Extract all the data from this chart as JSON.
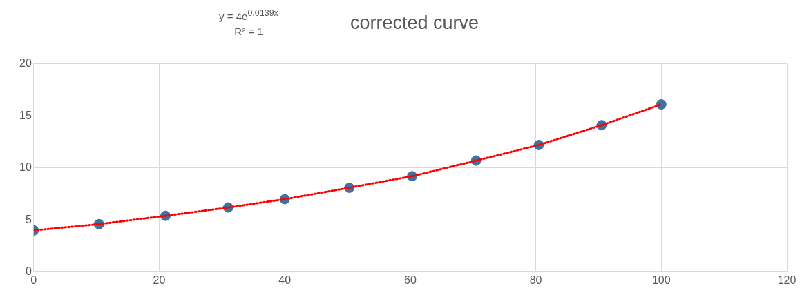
{
  "chart_data": {
    "type": "scatter",
    "title": "corrected curve",
    "annotations": [
      "y = 4e$^{0.0139x}$",
      "R² = 1"
    ],
    "series": [
      {
        "color": "#41719c",
        "x": [
          0,
          10.4,
          21,
          31,
          40,
          50.3,
          60.3,
          70.5,
          80.5,
          90.5,
          100
        ],
        "values": [
          4,
          4.6,
          5.4,
          6.2,
          7.0,
          8.1,
          9.2,
          10.7,
          12.2,
          14.1,
          16.1
        ],
        "marker": "circle"
      },
      {
        "type": "line",
        "color": "#ff0000",
        "x": [
          0,
          10.4,
          21,
          31,
          40,
          50.3,
          60.3,
          70.5,
          80.5,
          90.5,
          100
        ],
        "values": [
          4,
          4.6,
          5.4,
          6.2,
          7.0,
          8.1,
          9.2,
          10.7,
          12.2,
          14.1,
          16.1
        ],
        "marker": "none",
        "line_style": "dotted"
      }
    ],
    "xlim": [
      0,
      120
    ],
    "xticks": [
      0,
      20,
      40,
      60,
      80,
      100,
      120
    ],
    "ylim": [
      0,
      20
    ],
    "yticks": [
      0,
      5,
      10,
      15,
      20
    ],
    "grid": true,
    "legend": false
  }
}
